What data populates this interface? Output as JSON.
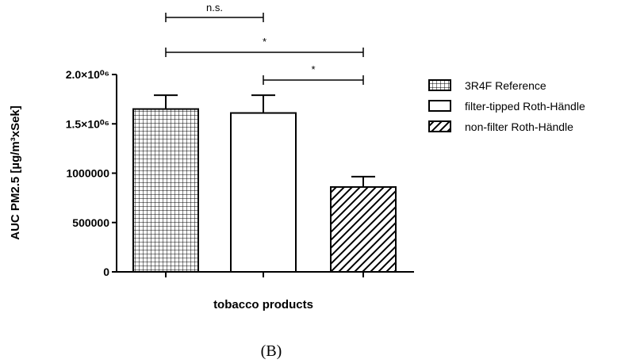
{
  "chart_data": {
    "type": "bar",
    "categories": [
      "3R4F Reference",
      "filter-tipped Roth-Händle",
      "non-filter Roth-Händle"
    ],
    "values": [
      1650000,
      1610000,
      860000
    ],
    "error_upper": [
      1790000,
      1790000,
      965000
    ],
    "ylabel": "AUC PM2.5 [µg/m³xSek]",
    "xlabel": "tobacco products",
    "ylim": [
      0,
      2000000
    ],
    "y_ticks": [
      {
        "value": 0,
        "label": "0"
      },
      {
        "value": 500000,
        "label": "500000"
      },
      {
        "value": 1000000,
        "label": "1000000"
      },
      {
        "value": 1500000,
        "label": "1.5×10⁰⁶"
      },
      {
        "value": 2000000,
        "label": "2.0×10⁰⁶"
      }
    ],
    "legend": {
      "placement": "right",
      "entries": [
        {
          "label": "3R4F Reference",
          "pattern": "grid"
        },
        {
          "label": "filter-tipped Roth-Händle",
          "pattern": "none"
        },
        {
          "label": "non-filter Roth-Händle",
          "pattern": "diagonal"
        }
      ]
    },
    "significance": [
      {
        "from": 0,
        "to": 1,
        "label": "n.s."
      },
      {
        "from": 0,
        "to": 2,
        "label": "*"
      },
      {
        "from": 1,
        "to": 2,
        "label": "*"
      }
    ],
    "panel_label": "(B)",
    "grid": false
  }
}
